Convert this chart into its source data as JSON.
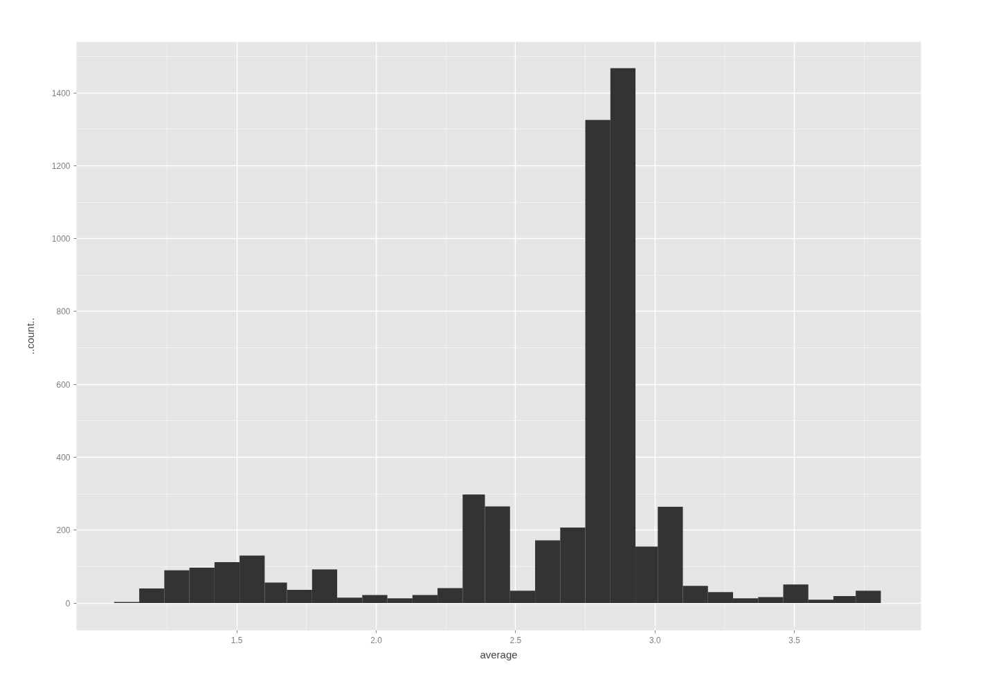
{
  "chart_data": {
    "type": "histogram",
    "xlabel": "average",
    "ylabel": "..count..",
    "bins": [
      1.06,
      1.15,
      1.24,
      1.33,
      1.42,
      1.51,
      1.6,
      1.68,
      1.77,
      1.86,
      1.95,
      2.04,
      2.13,
      2.22,
      2.31,
      2.39,
      2.48,
      2.57,
      2.66,
      2.75,
      2.84,
      2.93,
      3.01,
      3.1,
      3.19,
      3.28,
      3.37,
      3.46,
      3.55,
      3.64,
      3.72,
      3.81
    ],
    "values": [
      3,
      40,
      90,
      97,
      112,
      130,
      56,
      36,
      92,
      15,
      22,
      13,
      22,
      41,
      298,
      265,
      34,
      172,
      207,
      1326,
      1468,
      155,
      264,
      47,
      30,
      13,
      16,
      51,
      9,
      19,
      34
    ],
    "color": "#333333",
    "xlim": [
      0.925,
      3.954
    ],
    "ylim": [
      -75,
      1540
    ],
    "xticks": [
      1.5,
      {
        "value": 2,
        "label": "2.0"
      },
      2.5,
      {
        "value": 3,
        "label": "3.0"
      },
      3.5
    ],
    "yticks": [
      0,
      200,
      400,
      600,
      800,
      1000,
      1200,
      1400
    ],
    "grid": true
  }
}
